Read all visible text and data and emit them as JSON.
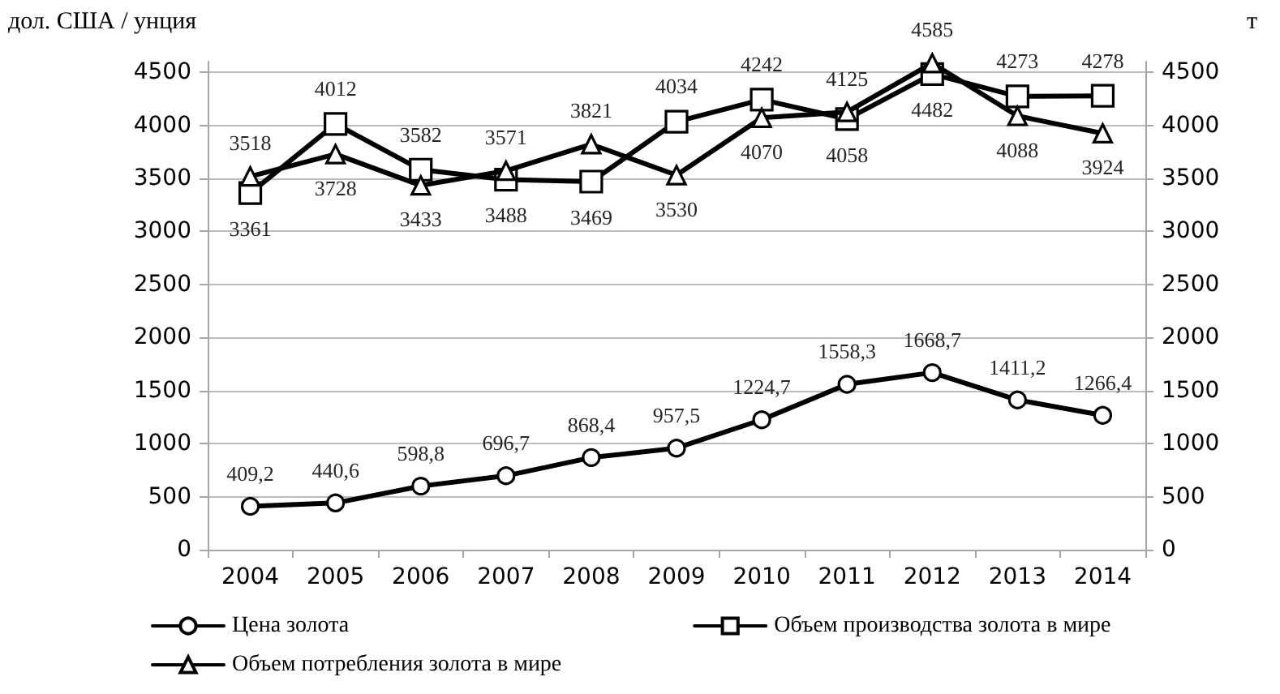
{
  "chart_data": {
    "type": "line",
    "ylabel": "дол. США / унция",
    "y2label": "т",
    "categories": [
      "2004",
      "2005",
      "2006",
      "2007",
      "2008",
      "2009",
      "2010",
      "2011",
      "2012",
      "2013",
      "2014"
    ],
    "ylim": [
      0,
      4600
    ],
    "yticks": [
      0,
      500,
      1000,
      1500,
      2000,
      2500,
      3000,
      3500,
      4000,
      4500
    ],
    "y2lim": [
      0,
      4600
    ],
    "y2ticks": [
      0,
      500,
      1000,
      1500,
      2000,
      2500,
      3000,
      3500,
      4000,
      4500
    ],
    "grid": "y",
    "legend": "bottom",
    "line_style": "solid",
    "series": [
      {
        "name": "Цена золота",
        "color": "#000000",
        "marker": "circle",
        "values": [
          409.2,
          440.6,
          598.8,
          696.7,
          868.4,
          957.5,
          1224.7,
          1558.3,
          1668.7,
          1411.2,
          1266.4
        ],
        "value_labels": [
          "409,2",
          "440,6",
          "598,8",
          "696,7",
          "868,4",
          "957,5",
          "1224,7",
          "1558,3",
          "1668,7",
          "1411,2",
          "1266,4"
        ]
      },
      {
        "name": "Объем производства золота в мире",
        "color": "#000000",
        "marker": "square",
        "axis": "y2",
        "values": [
          3361,
          4012,
          3582,
          3488,
          3469,
          4034,
          4242,
          4058,
          4482,
          4273,
          4278
        ],
        "value_labels": [
          "3361",
          "4012",
          "3582",
          "3488",
          "3469",
          "4034",
          "4242",
          "4058",
          "4482",
          "4273",
          "4278"
        ]
      },
      {
        "name": "Объем потребления золота в мире",
        "color": "#000000",
        "marker": "triangle",
        "axis": "y2",
        "values": [
          3518,
          3728,
          3433,
          3571,
          3821,
          3530,
          4070,
          4125,
          4585,
          4088,
          3924
        ],
        "value_labels": [
          "3518",
          "3728",
          "3433",
          "3571",
          "3821",
          "3530",
          "4070",
          "4125",
          "4585",
          "4088",
          "3924"
        ]
      }
    ]
  }
}
